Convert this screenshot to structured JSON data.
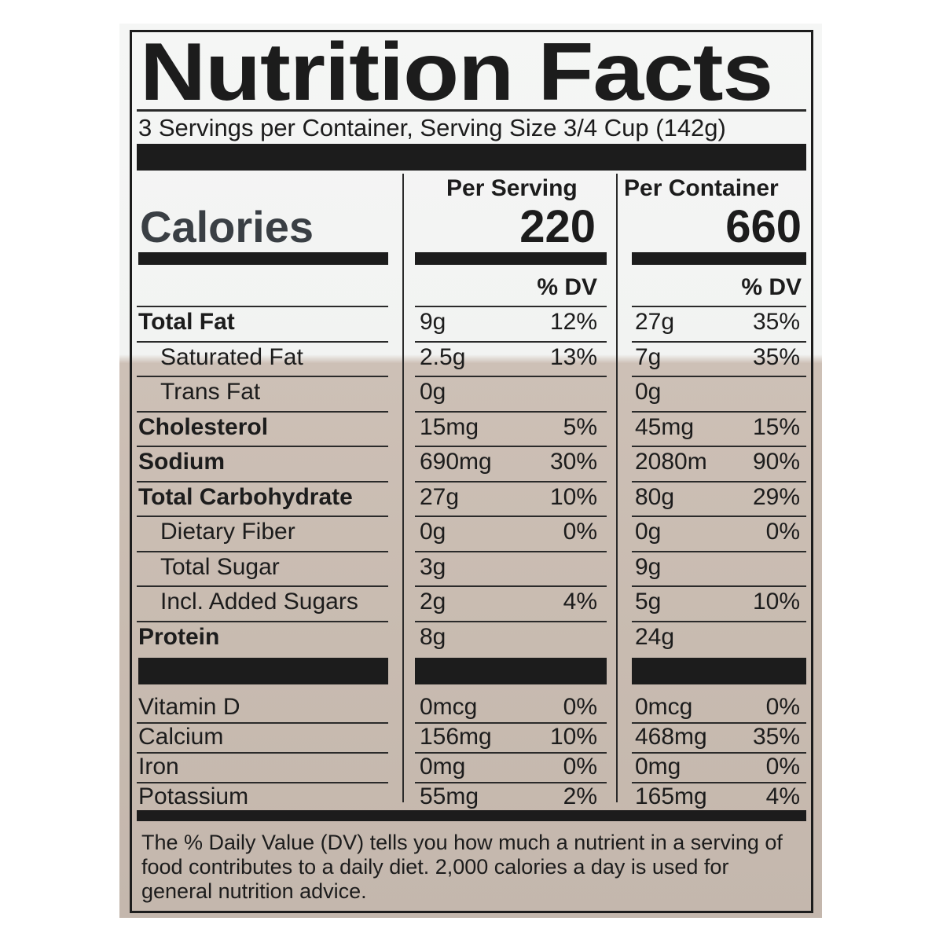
{
  "title": "Nutrition Facts",
  "servings_line": "3 Servings per Container, Serving Size 3/4 Cup (142g)",
  "columns": {
    "per_serving": "Per Serving",
    "per_container": "Per Container",
    "dv_label": "% DV"
  },
  "calories": {
    "label": "Calories",
    "per_serving": "220",
    "per_container": "660"
  },
  "nutrients": [
    {
      "name": "Total Fat",
      "bold": true,
      "indent": false,
      "serv_amt": "9g",
      "serv_dv": "12%",
      "cont_amt": "27g",
      "cont_dv": "35%"
    },
    {
      "name": "Saturated Fat",
      "bold": false,
      "indent": true,
      "serv_amt": "2.5g",
      "serv_dv": "13%",
      "cont_amt": "7g",
      "cont_dv": "35%"
    },
    {
      "name": "Trans Fat",
      "bold": false,
      "indent": true,
      "serv_amt": "0g",
      "serv_dv": "",
      "cont_amt": "0g",
      "cont_dv": ""
    },
    {
      "name": "Cholesterol",
      "bold": true,
      "indent": false,
      "serv_amt": "15mg",
      "serv_dv": "5%",
      "cont_amt": "45mg",
      "cont_dv": "15%"
    },
    {
      "name": "Sodium",
      "bold": true,
      "indent": false,
      "serv_amt": "690mg",
      "serv_dv": "30%",
      "cont_amt": "2080m",
      "cont_dv": "90%"
    },
    {
      "name": "Total Carbohydrate",
      "bold": true,
      "indent": false,
      "serv_amt": "27g",
      "serv_dv": "10%",
      "cont_amt": "80g",
      "cont_dv": "29%"
    },
    {
      "name": "Dietary Fiber",
      "bold": false,
      "indent": true,
      "serv_amt": "0g",
      "serv_dv": "0%",
      "cont_amt": "0g",
      "cont_dv": "0%"
    },
    {
      "name": "Total Sugar",
      "bold": false,
      "indent": true,
      "serv_amt": "3g",
      "serv_dv": "",
      "cont_amt": "9g",
      "cont_dv": ""
    },
    {
      "name": "Incl. Added Sugars",
      "bold": false,
      "indent": true,
      "serv_amt": "2g",
      "serv_dv": "4%",
      "cont_amt": "5g",
      "cont_dv": "10%"
    },
    {
      "name": "Protein",
      "bold": true,
      "indent": false,
      "serv_amt": "8g",
      "serv_dv": "",
      "cont_amt": "24g",
      "cont_dv": ""
    }
  ],
  "vitamins": [
    {
      "name": "Vitamin D",
      "serv_amt": "0mcg",
      "serv_dv": "0%",
      "cont_amt": "0mcg",
      "cont_dv": "0%"
    },
    {
      "name": "Calcium",
      "serv_amt": "156mg",
      "serv_dv": "10%",
      "cont_amt": "468mg",
      "cont_dv": "35%"
    },
    {
      "name": "Iron",
      "serv_amt": "0mg",
      "serv_dv": "0%",
      "cont_amt": "0mg",
      "cont_dv": "0%"
    },
    {
      "name": "Potassium",
      "serv_amt": "55mg",
      "serv_dv": "2%",
      "cont_amt": "165mg",
      "cont_dv": "4%"
    }
  ],
  "footnote": "The % Daily Value (DV) tells you how much a nutrient in a serving of food contributes to a daily diet. 2,000 calories a day is used for general nutrition advice."
}
